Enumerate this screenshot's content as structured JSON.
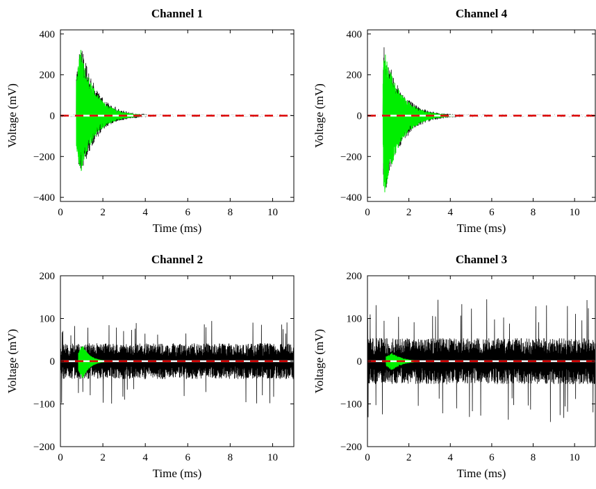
{
  "chart_data": [
    {
      "type": "line",
      "title": "Channel 1",
      "xlabel": "Time (ms)",
      "ylabel": "Voltage (mV)",
      "xlim": [
        0,
        11
      ],
      "ylim": [
        -420,
        420
      ],
      "xticks": [
        0,
        2,
        4,
        6,
        8,
        10
      ],
      "xtick_labels": [
        "0",
        "2",
        "4",
        "6",
        "8",
        "10"
      ],
      "yticks": [
        -400,
        -200,
        0,
        200,
        400
      ],
      "ytick_labels": [
        "−400",
        "−200",
        "0",
        "200",
        "400"
      ],
      "grid": false,
      "series": [
        {
          "role": "raw",
          "color": "#000000",
          "onset_ms": 0.75,
          "peak_ms": 0.95,
          "amp_pos_mV": 365,
          "amp_neg_mV": 305,
          "decay_ms": 0.75,
          "noise_mV": 3,
          "end_ms": 11
        },
        {
          "role": "signal",
          "color": "#00ee00",
          "onset_ms": 0.75,
          "peak_ms": 0.95,
          "amp_pos_mV": 330,
          "amp_neg_mV": 285,
          "decay_ms": 0.7,
          "end_ms": 4.3
        },
        {
          "role": "baseline",
          "color": "#dd0000",
          "style": "dashed",
          "value_mV": 0
        }
      ]
    },
    {
      "type": "line",
      "title": "Channel 4",
      "xlabel": "Time (ms)",
      "ylabel": "Voltage (mV)",
      "xlim": [
        0,
        11
      ],
      "ylim": [
        -420,
        420
      ],
      "xticks": [
        0,
        2,
        4,
        6,
        8,
        10
      ],
      "xtick_labels": [
        "0",
        "2",
        "4",
        "6",
        "8",
        "10"
      ],
      "yticks": [
        -400,
        -200,
        0,
        200,
        400
      ],
      "ytick_labels": [
        "−400",
        "−200",
        "0",
        "200",
        "400"
      ],
      "grid": false,
      "series": [
        {
          "role": "raw",
          "color": "#000000",
          "onset_ms": 0.75,
          "peak_ms": 0.8,
          "amp_pos_mV": 355,
          "amp_neg_mV": 410,
          "decay_ms": 0.8,
          "noise_mV": 3,
          "end_ms": 11
        },
        {
          "role": "signal",
          "color": "#00ee00",
          "onset_ms": 0.75,
          "peak_ms": 0.8,
          "amp_pos_mV": 330,
          "amp_neg_mV": 400,
          "decay_ms": 0.75,
          "end_ms": 4.5
        },
        {
          "role": "baseline",
          "color": "#dd0000",
          "style": "dashed",
          "value_mV": 0
        }
      ]
    },
    {
      "type": "line",
      "title": "Channel 2",
      "xlabel": "Time (ms)",
      "ylabel": "Voltage (mV)",
      "xlim": [
        0,
        11
      ],
      "ylim": [
        -200,
        200
      ],
      "xticks": [
        0,
        2,
        4,
        6,
        8,
        10
      ],
      "xtick_labels": [
        "0",
        "2",
        "4",
        "6",
        "8",
        "10"
      ],
      "yticks": [
        -200,
        -100,
        0,
        100,
        200
      ],
      "ytick_labels": [
        "−200",
        "−100",
        "0",
        "100",
        "200"
      ],
      "grid": false,
      "series": [
        {
          "role": "raw",
          "color": "#000000",
          "onset_ms": 0,
          "noise_mV": 35,
          "spike_mV": 100,
          "end_ms": 11
        },
        {
          "role": "signal",
          "color": "#00ee00",
          "onset_ms": 0.85,
          "peak_ms": 1.05,
          "amp_pos_mV": 38,
          "amp_neg_mV": 42,
          "decay_ms": 0.35,
          "end_ms": 2.2
        },
        {
          "role": "baseline",
          "color": "#dd0000",
          "style": "dashed",
          "value_mV": 0
        }
      ]
    },
    {
      "type": "line",
      "title": "Channel 3",
      "xlabel": "Time (ms)",
      "ylabel": "Voltage (mV)",
      "xlim": [
        0,
        11
      ],
      "ylim": [
        -200,
        200
      ],
      "xticks": [
        0,
        2,
        4,
        6,
        8,
        10
      ],
      "xtick_labels": [
        "0",
        "2",
        "4",
        "6",
        "8",
        "10"
      ],
      "yticks": [
        -200,
        -100,
        0,
        100,
        200
      ],
      "ytick_labels": [
        "−200",
        "−100",
        "0",
        "100",
        "200"
      ],
      "grid": false,
      "series": [
        {
          "role": "raw",
          "color": "#000000",
          "onset_ms": 0,
          "noise_mV": 45,
          "spike_mV": 145,
          "end_ms": 11
        },
        {
          "role": "signal",
          "color": "#00ee00",
          "onset_ms": 0.9,
          "peak_ms": 1.2,
          "amp_pos_mV": 20,
          "amp_neg_mV": 22,
          "decay_ms": 0.5,
          "end_ms": 3.0
        },
        {
          "role": "baseline",
          "color": "#dd0000",
          "style": "dashed",
          "value_mV": 0
        }
      ]
    }
  ]
}
